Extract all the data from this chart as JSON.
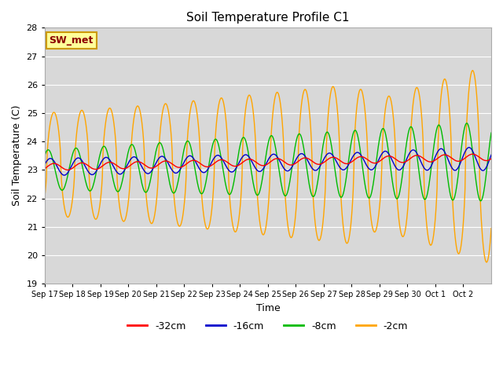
{
  "title": "Soil Temperature Profile C1",
  "xlabel": "Time",
  "ylabel": "Soil Temperature (C)",
  "ylim": [
    19.0,
    28.0
  ],
  "yticks": [
    19.0,
    20.0,
    21.0,
    22.0,
    23.0,
    24.0,
    25.0,
    26.0,
    27.0,
    28.0
  ],
  "xtick_labels": [
    "Sep 17",
    "Sep 18",
    "Sep 19",
    "Sep 20",
    "Sep 21",
    "Sep 22",
    "Sep 23",
    "Sep 24",
    "Sep 25",
    "Sep 26",
    "Sep 27",
    "Sep 28",
    "Sep 29",
    "Sep 30",
    "Oct 1",
    "Oct 2"
  ],
  "legend_labels": [
    "-32cm",
    "-16cm",
    "-8cm",
    "-2cm"
  ],
  "legend_colors": [
    "#ff0000",
    "#0000cc",
    "#00bb00",
    "#ffa500"
  ],
  "bg_color": "#e0e0e0",
  "plot_bg": "#d8d8d8",
  "annotation_text": "SW_met",
  "annotation_bg": "#ffff99",
  "annotation_border": "#cc9900"
}
